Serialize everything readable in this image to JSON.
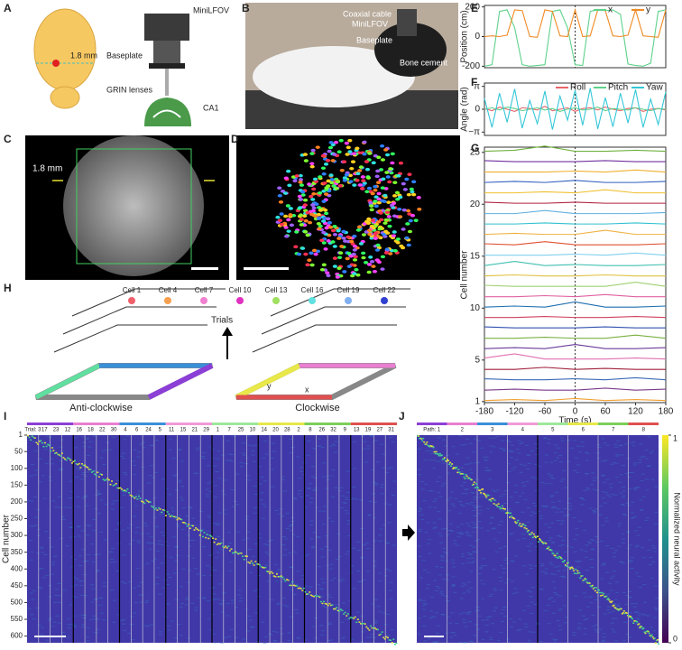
{
  "panel_labels": [
    "A",
    "B",
    "C",
    "D",
    "E",
    "F",
    "G",
    "H",
    "I",
    "J"
  ],
  "panel_a": {
    "device": "MiniLFOV",
    "baseplate": "Baseplate",
    "lenses": "GRIN lenses",
    "region": "CA1",
    "size": "1.8 mm"
  },
  "panel_b": {
    "cable": "Coaxial cable",
    "device": "MiniLFOV",
    "baseplate": "Baseplate",
    "cement": "Bone cement"
  },
  "panel_c": {
    "size": "1.8 mm"
  },
  "panel_h": {
    "cells": [
      "Cell 1",
      "Cell 4",
      "Cell 7",
      "Cell 10",
      "Cell 13",
      "Cell 16",
      "Cell 19",
      "Cell 22"
    ],
    "cell_colors": [
      "#f0606a",
      "#f5a050",
      "#f080d0",
      "#e030c0",
      "#a0e060",
      "#60e0e0",
      "#80b0f0",
      "#3040d0"
    ],
    "trials": "Trials",
    "left": "Anti-clockwise",
    "right": "Clockwise",
    "x": "x",
    "y": "y"
  },
  "panel_i": {
    "trials": [
      "Trial: 3",
      "17",
      "23",
      "12",
      "16",
      "18",
      "22",
      "30",
      "4",
      "6",
      "24",
      "5",
      "11",
      "15",
      "21",
      "29",
      "1",
      "7",
      "25",
      "10",
      "14",
      "20",
      "28",
      "2",
      "8",
      "26",
      "32",
      "9",
      "13",
      "19",
      "27",
      "31"
    ],
    "ylabel": "Cell number",
    "yticks": [
      1,
      50,
      100,
      150,
      200,
      250,
      300,
      350,
      400,
      450,
      500,
      550,
      600
    ],
    "ylim": [
      1,
      620
    ]
  },
  "panel_j": {
    "paths": [
      "Path: 1",
      "2",
      "3",
      "4",
      "5",
      "6",
      "7",
      "8"
    ],
    "path_colors": [
      "#8b3fd6",
      "#e97fd0",
      "#3a8fd9",
      "#f19ad8",
      "#9de89a",
      "#e8e84a",
      "#7ccf5a",
      "#e05050"
    ],
    "colorbar_label": "Normalized neural activity",
    "colorbar_ticks": [
      0,
      1
    ]
  },
  "chart_data": [
    {
      "type": "line",
      "ylabel": "Position (cm)",
      "xlim": [
        -180,
        180
      ],
      "ylim": [
        -210,
        210
      ],
      "yticks": [
        -200,
        0,
        200
      ],
      "legend": "top-right",
      "x": [
        -180,
        -165,
        -150,
        -135,
        -120,
        -105,
        -90,
        -75,
        -60,
        -45,
        -30,
        -15,
        0,
        15,
        30,
        45,
        60,
        75,
        90,
        105,
        120,
        135,
        150,
        165,
        180
      ],
      "series": [
        {
          "name": "x",
          "color": "#5fd18a",
          "values": [
            -200,
            -190,
            170,
            180,
            60,
            -190,
            -200,
            -195,
            -190,
            170,
            180,
            60,
            -190,
            -195,
            170,
            180,
            175,
            180,
            150,
            -185,
            -195,
            -200,
            -180,
            170,
            180
          ]
        },
        {
          "name": "y",
          "color": "#f08a24",
          "values": [
            0,
            5,
            0,
            10,
            180,
            175,
            0,
            -5,
            180,
            170,
            5,
            0,
            180,
            0,
            5,
            180,
            175,
            5,
            0,
            10,
            180,
            5,
            0,
            -5,
            180
          ]
        }
      ]
    },
    {
      "type": "line",
      "ylabel": "Angle (rad)",
      "xlim": [
        -180,
        180
      ],
      "ylim": [
        -3.6,
        3.6
      ],
      "legend": "top-right",
      "yticks": [
        {
          "value": -3.1416,
          "label": "−π"
        },
        0,
        {
          "value": 3.1416,
          "label": "π"
        }
      ],
      "x": [
        -180,
        -165,
        -150,
        -135,
        -120,
        -105,
        -90,
        -75,
        -60,
        -45,
        -30,
        -15,
        0,
        15,
        30,
        45,
        60,
        75,
        90,
        105,
        120,
        135,
        150,
        165,
        180
      ],
      "series": [
        {
          "name": "Roll",
          "color": "#e8656a",
          "values": [
            0.1,
            -0.2,
            0.3,
            0,
            -0.3,
            0.2,
            0.1,
            -0.1,
            0.4,
            -0.2,
            0,
            0.2,
            -0.3,
            0.1,
            0.2,
            -0.1,
            0.3,
            0,
            -0.2,
            0.1,
            0.2,
            -0.3,
            0,
            0.1,
            -0.1
          ]
        },
        {
          "name": "Pitch",
          "color": "#5fd18a",
          "values": [
            0,
            0.2,
            -0.1,
            0.3,
            0.1,
            -0.2,
            0,
            0.2,
            -0.1,
            0.1,
            -0.3,
            0,
            0.2,
            -0.1,
            0,
            0.3,
            -0.2,
            0.1,
            0,
            -0.1,
            0.2,
            0,
            -0.2,
            0.1,
            0
          ]
        },
        {
          "name": "Yaw",
          "color": "#35c7d8",
          "values": [
            1.5,
            -2.5,
            2.2,
            -1.8,
            2.8,
            -2.6,
            1.2,
            -2,
            2.5,
            -2.8,
            1.8,
            -1.5,
            2.6,
            -2.2,
            2.9,
            -2.7,
            1.6,
            -2.4,
            2.2,
            -1.9,
            2.7,
            -2.5,
            1.4,
            -2.1,
            2.4
          ]
        }
      ]
    },
    {
      "type": "line",
      "ylabel": "Cell number",
      "xlabel": "Time (s)",
      "xlim": [
        -180,
        180
      ],
      "ylim": [
        0.9,
        25.5
      ],
      "xticks": [
        -180,
        -120,
        -60,
        0,
        60,
        120,
        180
      ],
      "yticks": [
        1,
        5,
        10,
        15,
        20,
        25
      ],
      "x": [
        -180,
        -120,
        -60,
        0,
        60,
        120,
        180
      ],
      "series": [
        {
          "color": "#f0a030",
          "values": [
            1.1,
            1.2,
            1.1,
            1.3,
            1.1,
            1.2,
            1.1
          ]
        },
        {
          "color": "#7a3a8a",
          "values": [
            2.1,
            2.2,
            2.1,
            2.1,
            2.3,
            2.1,
            2.2
          ]
        },
        {
          "color": "#3a6ab8",
          "values": [
            3.2,
            3.1,
            3.1,
            3.2,
            3.1,
            3.3,
            3.1
          ]
        },
        {
          "color": "#a0203a",
          "values": [
            4.1,
            4.1,
            4.3,
            4.1,
            4.2,
            4.1,
            4.1
          ]
        },
        {
          "color": "#e070b0",
          "values": [
            5.2,
            5.6,
            5.1,
            5.1,
            5.1,
            5.2,
            5.1
          ]
        },
        {
          "color": "#6a3a9a",
          "values": [
            6.1,
            6.2,
            6.1,
            6.5,
            6.1,
            6.1,
            6.2
          ]
        },
        {
          "color": "#7ab040",
          "values": [
            7.1,
            7.1,
            7.2,
            7.1,
            7.1,
            7.4,
            7.1
          ]
        },
        {
          "color": "#3050b0",
          "values": [
            8.2,
            8.1,
            8.1,
            8.1,
            8.2,
            8.1,
            8.1
          ]
        },
        {
          "color": "#d04060",
          "values": [
            9.1,
            9.1,
            9.2,
            9.1,
            9.1,
            9.2,
            9.1
          ]
        },
        {
          "color": "#1f6fb0",
          "values": [
            10.1,
            10.2,
            10.1,
            10.6,
            10.1,
            10.1,
            10.2
          ]
        },
        {
          "color": "#e060a0",
          "values": [
            11.1,
            11.1,
            11.2,
            11.1,
            11.3,
            11.1,
            11.1
          ]
        },
        {
          "color": "#9fd070",
          "values": [
            12.2,
            12.1,
            12.1,
            12.1,
            12.1,
            12.5,
            12.1
          ]
        },
        {
          "color": "#e0c040",
          "values": [
            13.1,
            13.2,
            13.1,
            13.1,
            13.2,
            13.1,
            13.1
          ]
        },
        {
          "color": "#40c0b0",
          "values": [
            14.1,
            14.5,
            14.1,
            14.2,
            14.1,
            14.1,
            14.2
          ]
        },
        {
          "color": "#80d0f0",
          "values": [
            15.1,
            15.1,
            15.1,
            15.2,
            15.1,
            15.3,
            15.1
          ]
        },
        {
          "color": "#e05030",
          "values": [
            16.2,
            16.1,
            16.4,
            16.1,
            16.1,
            16.1,
            16.2
          ]
        },
        {
          "color": "#f0b040",
          "values": [
            17.1,
            17.2,
            17.1,
            17.1,
            17.5,
            17.1,
            17.1
          ]
        },
        {
          "color": "#30c0d0",
          "values": [
            18.1,
            18.1,
            18.2,
            18.1,
            18.1,
            18.2,
            18.1
          ]
        },
        {
          "color": "#60b0e0",
          "values": [
            19.1,
            19.1,
            19.4,
            19.1,
            19.1,
            19.1,
            19.2
          ]
        },
        {
          "color": "#b02040",
          "values": [
            20.2,
            20.1,
            20.1,
            20.2,
            20.1,
            20.1,
            20.1
          ]
        },
        {
          "color": "#f0c030",
          "values": [
            21.1,
            21.1,
            21.2,
            21.1,
            21.4,
            21.1,
            21.1
          ]
        },
        {
          "color": "#3060c0",
          "values": [
            22.1,
            22.2,
            22.1,
            22.3,
            22.1,
            22.1,
            22.2
          ]
        },
        {
          "color": "#f0b030",
          "values": [
            23.1,
            23.1,
            23.1,
            23.2,
            23.1,
            23.3,
            23.1
          ]
        },
        {
          "color": "#7030a0",
          "values": [
            24.2,
            24.1,
            24.1,
            24.1,
            24.2,
            24.1,
            24.1
          ]
        },
        {
          "color": "#70b040",
          "values": [
            25.1,
            25.2,
            25.6,
            25.1,
            25.1,
            25.2,
            25.1
          ]
        }
      ]
    }
  ]
}
